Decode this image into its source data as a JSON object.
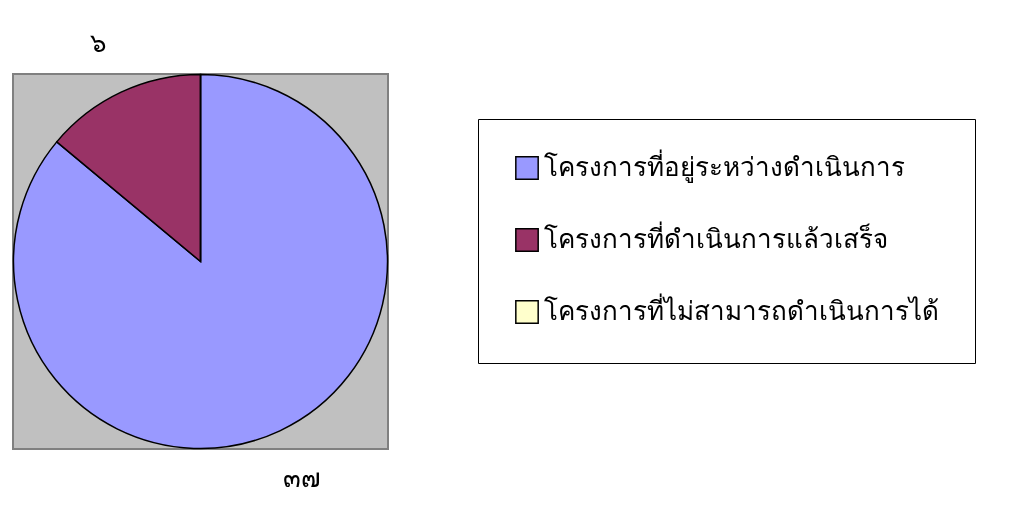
{
  "chart_data": {
    "type": "pie",
    "categories": [
      "โครงการที่อยู่ระหว่างดำเนินการ",
      "โครงการที่ดำเนินการแล้วเสร็จ",
      "โครงการที่ไม่สามารถดำเนินการได้"
    ],
    "values": [
      37,
      6,
      0
    ],
    "colors": [
      "#9999ff",
      "#993366",
      "#ffffcc"
    ],
    "value_labels": [
      "๓๗",
      "๖",
      null
    ],
    "legend": "right"
  }
}
